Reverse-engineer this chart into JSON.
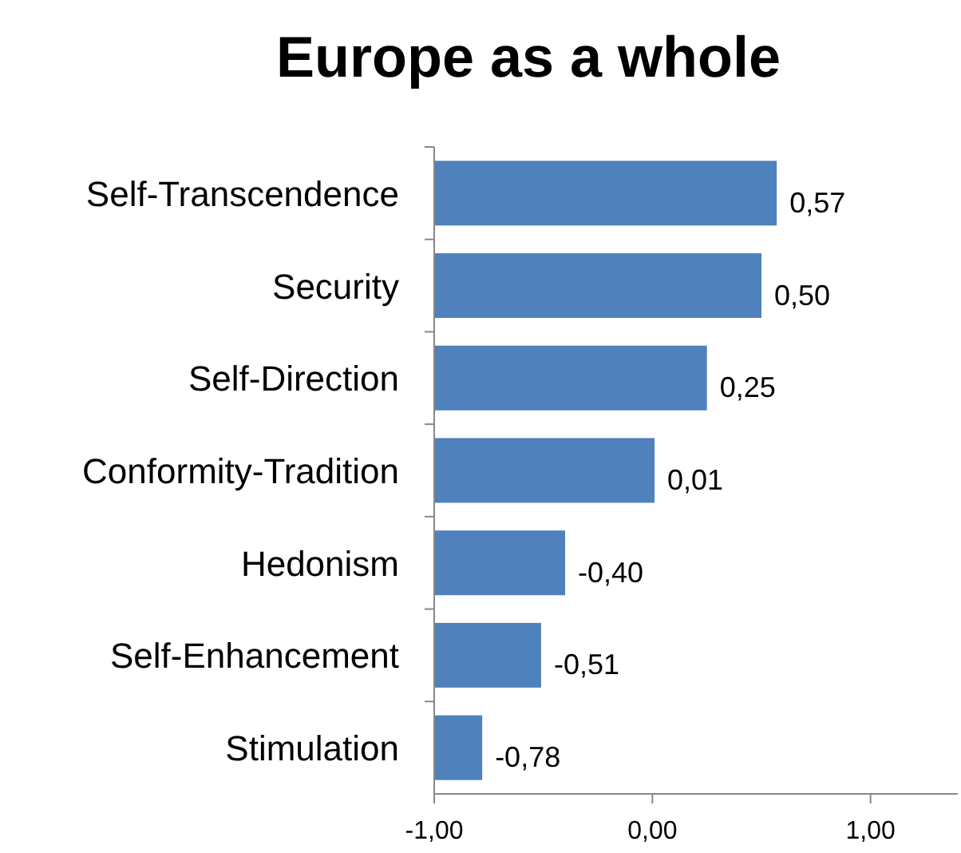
{
  "chart_data": {
    "type": "bar",
    "orientation": "horizontal",
    "title": "Europe as a whole",
    "categories": [
      "Self-Transcendence",
      "Security",
      "Self-Direction",
      "Conformity-Tradition",
      "Hedonism",
      "Self-Enhancement",
      "Stimulation"
    ],
    "values": [
      1.57,
      1.5,
      1.25,
      1.01,
      0.6,
      0.49,
      0.22
    ],
    "base": [
      -1,
      -1,
      -1,
      -1,
      -1,
      -1,
      -1
    ],
    "value_labels": [
      "0,57",
      "0,50",
      "0,25",
      "0,01",
      "-0,40",
      "-0,51",
      "-0,78"
    ],
    "color": "#4f81bd",
    "xlim": [
      -1,
      1.4
    ],
    "xticks": [
      {
        "value": -1,
        "label": "-1,00"
      },
      {
        "value": 0,
        "label": "0,00"
      },
      {
        "value": 1,
        "label": "1,00"
      }
    ],
    "grid": false
  }
}
